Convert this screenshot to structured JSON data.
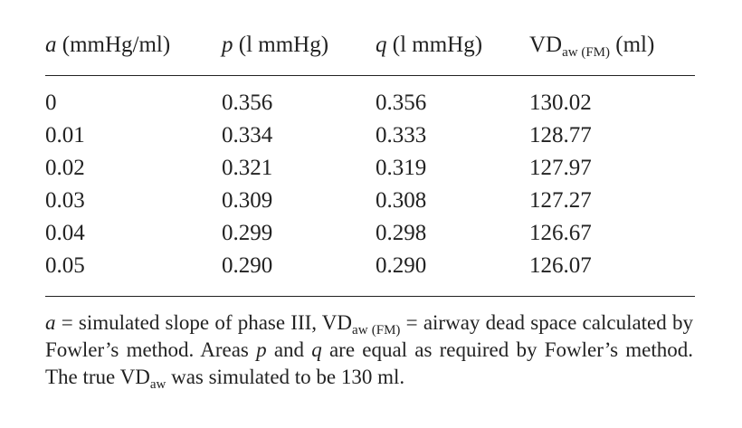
{
  "table": {
    "columns": [
      {
        "symbol": "a",
        "unit": "(mmHg/ml)"
      },
      {
        "symbol": "p",
        "unit": "(l mmHg)"
      },
      {
        "symbol": "q",
        "unit": "(l mmHg)"
      },
      {
        "symbol": "VD",
        "sub": "aw (FM)",
        "unit": "(ml)"
      }
    ],
    "rows": [
      [
        "0",
        "0.356",
        "0.356",
        "130.02"
      ],
      [
        "0.01",
        "0.334",
        "0.333",
        "128.77"
      ],
      [
        "0.02",
        "0.321",
        "0.319",
        "127.97"
      ],
      [
        "0.03",
        "0.309",
        "0.308",
        "127.27"
      ],
      [
        "0.04",
        "0.299",
        "0.298",
        "126.67"
      ],
      [
        "0.05",
        "0.290",
        "0.290",
        "126.07"
      ]
    ]
  },
  "footnote": {
    "parts": [
      "a",
      " = simulated slope of phase III, VD",
      "aw (FM)",
      " = airway dead space calculated by Fowler’s method. Areas ",
      "p",
      " and ",
      "q",
      " are equal as required by Fowler’s method. The true VD",
      "aw",
      " was simulated to be 130 ml."
    ]
  }
}
